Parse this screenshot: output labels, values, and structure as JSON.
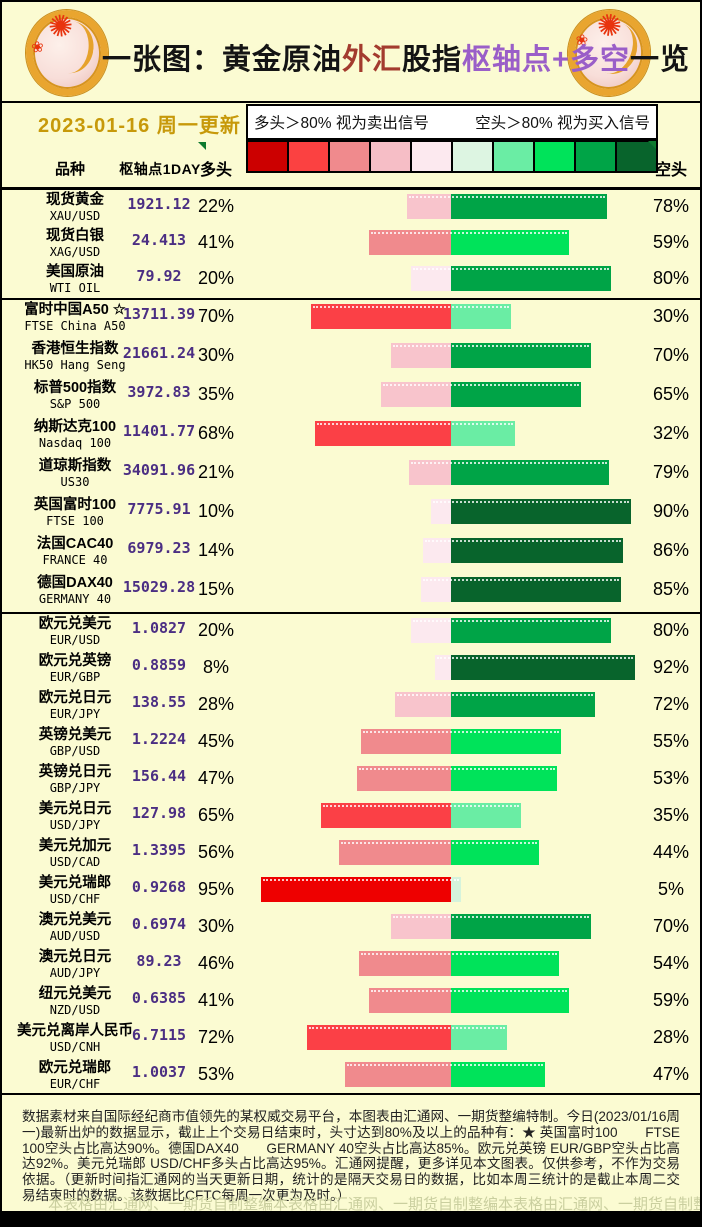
{
  "header": {
    "title_parts": [
      {
        "text": "一张图：黄金原油",
        "color": "#141414"
      },
      {
        "text": "外汇",
        "color": "#A33B2E"
      },
      {
        "text": "股指",
        "color": "#141414"
      },
      {
        "text": "枢轴点+多空",
        "color": "#9A5EC8"
      },
      {
        "text": "一览",
        "color": "#141414"
      }
    ],
    "date": "2023-01-16 周一更新",
    "legend_long": "多头＞80% 视为卖出信号",
    "legend_short": "空头＞80% 视为买入信号"
  },
  "columns": {
    "symbol": "品种",
    "pivot": "枢轴点1DAY",
    "long": "多头",
    "short": "空头"
  },
  "palette": {
    "scale": [
      "#CC0000",
      "#FB4141",
      "#F08A8D",
      "#F6BEC6",
      "#FCE9EF",
      "#DDF5E2",
      "#6AEDA4",
      "#00E35A",
      "#00A447",
      "#08642C"
    ],
    "bar_red": [
      "#FCE9EF",
      "#F8C4CC",
      "#F08A8D",
      "#FB4046",
      "#EE0000"
    ],
    "bar_green": [
      "#D5F3DC",
      "#6AEDA4",
      "#00E35A",
      "#00A447",
      "#08642C"
    ]
  },
  "chart_data": {
    "type": "bar",
    "orientation": "horizontal-diverging",
    "unit": "%",
    "note": "red bar = 多头 (long) %, green bar = 空头 (short) %, bars meet at pivot center, 2px per percent",
    "sections": [
      {
        "rows": [
          {
            "name": "现货黄金",
            "code": "XAU/USD",
            "pivot": "1921.12",
            "long": 22,
            "short": 78
          },
          {
            "name": "现货白银",
            "code": "XAG/USD",
            "pivot": "24.413",
            "long": 41,
            "short": 59
          },
          {
            "name": "美国原油",
            "code": "WTI OIL",
            "pivot": "79.92",
            "long": 20,
            "short": 80
          }
        ]
      },
      {
        "rows": [
          {
            "name": "富时中国A50 ☆",
            "code": "FTSE China A50",
            "pivot": "13711.39",
            "long": 70,
            "short": 30
          },
          {
            "name": "香港恒生指数",
            "code": "HK50 Hang Seng",
            "pivot": "21661.24",
            "long": 30,
            "short": 70
          },
          {
            "name": "标普500指数",
            "code": "S&P 500",
            "pivot": "3972.83",
            "long": 35,
            "short": 65
          },
          {
            "name": "纳斯达克100",
            "code": "Nasdaq 100",
            "pivot": "11401.77",
            "long": 68,
            "short": 32
          },
          {
            "name": "道琼斯指数",
            "code": "US30",
            "pivot": "34091.96",
            "long": 21,
            "short": 79
          },
          {
            "name": "英国富时100",
            "code": "FTSE 100",
            "pivot": "7775.91",
            "long": 10,
            "short": 90
          },
          {
            "name": "法国CAC40",
            "code": "FRANCE 40",
            "pivot": "6979.23",
            "long": 14,
            "short": 86
          },
          {
            "name": "德国DAX40",
            "code": "GERMANY 40",
            "pivot": "15029.28",
            "long": 15,
            "short": 85
          }
        ]
      },
      {
        "rows": [
          {
            "name": "欧元兑美元",
            "code": "EUR/USD",
            "pivot": "1.0827",
            "long": 20,
            "short": 80
          },
          {
            "name": "欧元兑英镑",
            "code": "EUR/GBP",
            "pivot": "0.8859",
            "long": 8,
            "short": 92
          },
          {
            "name": "欧元兑日元",
            "code": "EUR/JPY",
            "pivot": "138.55",
            "long": 28,
            "short": 72
          },
          {
            "name": "英镑兑美元",
            "code": "GBP/USD",
            "pivot": "1.2224",
            "long": 45,
            "short": 55
          },
          {
            "name": "英镑兑日元",
            "code": "GBP/JPY",
            "pivot": "156.44",
            "long": 47,
            "short": 53
          },
          {
            "name": "美元兑日元",
            "code": "USD/JPY",
            "pivot": "127.98",
            "long": 65,
            "short": 35
          },
          {
            "name": "美元兑加元",
            "code": "USD/CAD",
            "pivot": "1.3395",
            "long": 56,
            "short": 44
          },
          {
            "name": "美元兑瑞郎",
            "code": "USD/CHF",
            "pivot": "0.9268",
            "long": 95,
            "short": 5
          },
          {
            "name": "澳元兑美元",
            "code": "AUD/USD",
            "pivot": "0.6974",
            "long": 30,
            "short": 70
          },
          {
            "name": "澳元兑日元",
            "code": "AUD/JPY",
            "pivot": "89.23",
            "long": 46,
            "short": 54
          },
          {
            "name": "纽元兑美元",
            "code": "NZD/USD",
            "pivot": "0.6385",
            "long": 41,
            "short": 59
          },
          {
            "name": "美元兑离岸人民币",
            "code": "USD/CNH",
            "pivot": "6.7115",
            "long": 72,
            "short": 28
          },
          {
            "name": "欧元兑瑞郎",
            "code": "EUR/CHF",
            "pivot": "1.0037",
            "long": 53,
            "short": 47
          }
        ]
      }
    ]
  },
  "footer": {
    "note": "数据素材来自国际经纪商市值领先的某权威交易平台，本图表由汇通网、一期货整编特制。今日(2023/01/16周一)最新出炉的数据显示，截止上个交易日结束时，头寸达到80%及以上的品种有：★ 英国富时100　　FTSE 100空头占比高达90%。德国DAX40　　GERMANY 40空头占比高达85%。欧元兑英镑 EUR/GBP空头占比高达92%。美元兑瑞郎 USD/CHF多头占比高达95%。汇通网提醒，更多详见本文图表。仅供参考，不作为交易依据。（更新时间指汇通网的当天更新日期，统计的是隔天交易日的数据，比如本周三统计的是截止本周二交易结束时的数据。该数据比CFTC每周一次更为及时。）",
    "watermark": "本表格由汇通网、一期货自制整编"
  }
}
